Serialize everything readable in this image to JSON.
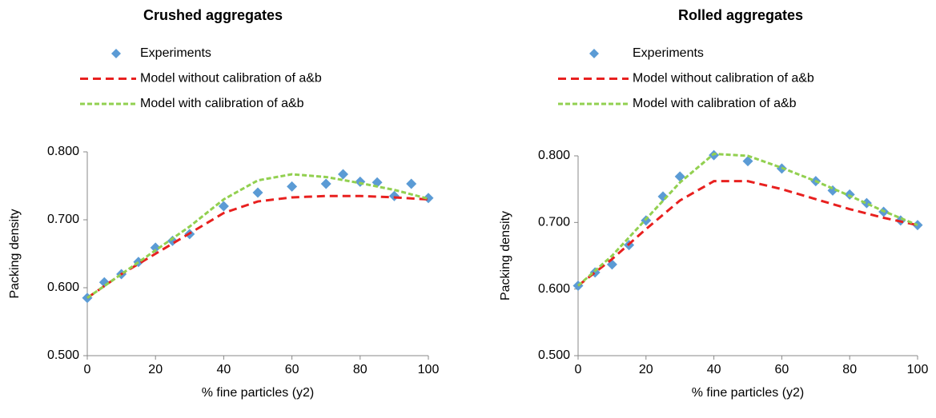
{
  "chart_data": [
    {
      "type": "line",
      "title": "Crushed aggregates",
      "xlabel": "% fine particles (y2)",
      "ylabel": "Packing density",
      "xlim": [
        0,
        100
      ],
      "xticks": [
        0,
        20,
        40,
        60,
        80,
        100
      ],
      "ylim": [
        0.5,
        0.8
      ],
      "yticks": [
        {
          "value": 0.5,
          "label": "0.500"
        },
        {
          "value": 0.6,
          "label": "0.600"
        },
        {
          "value": 0.7,
          "label": "0.700"
        },
        {
          "value": 0.8,
          "label": "0.800"
        }
      ],
      "series": [
        {
          "name": "Experiments",
          "color": "#5b9bd5",
          "style": "markers",
          "x": [
            0,
            5,
            10,
            15,
            20,
            25,
            30,
            40,
            50,
            60,
            70,
            75,
            80,
            85,
            90,
            95,
            100
          ],
          "values": [
            0.585,
            0.608,
            0.62,
            0.638,
            0.659,
            0.669,
            0.679,
            0.72,
            0.74,
            0.749,
            0.753,
            0.767,
            0.756,
            0.755,
            0.735,
            0.753,
            0.732
          ]
        },
        {
          "name": "Model without calibration of a&b",
          "color": "#e8201f",
          "style": "dashed",
          "x": [
            0,
            10,
            20,
            30,
            40,
            50,
            60,
            70,
            80,
            90,
            100
          ],
          "values": [
            0.585,
            0.62,
            0.65,
            0.68,
            0.71,
            0.727,
            0.733,
            0.735,
            0.735,
            0.733,
            0.73
          ]
        },
        {
          "name": "Model with calibration of a&b",
          "color": "#92d050",
          "style": "dotted-dash",
          "x": [
            0,
            10,
            20,
            30,
            40,
            50,
            60,
            70,
            80,
            90,
            100
          ],
          "values": [
            0.585,
            0.62,
            0.655,
            0.69,
            0.73,
            0.758,
            0.767,
            0.763,
            0.754,
            0.744,
            0.731
          ]
        }
      ]
    },
    {
      "type": "line",
      "title": "Rolled aggregates",
      "xlabel": "% fine particles (y2)",
      "ylabel": "Packing density",
      "xlim": [
        0,
        100
      ],
      "xticks": [
        0,
        20,
        40,
        60,
        80,
        100
      ],
      "ylim": [
        0.5,
        0.8
      ],
      "yticks": [
        {
          "value": 0.5,
          "label": "0.500"
        },
        {
          "value": 0.6,
          "label": "0.600"
        },
        {
          "value": 0.7,
          "label": "0.700"
        },
        {
          "value": 0.8,
          "label": "0.800"
        }
      ],
      "series": [
        {
          "name": "Experiments",
          "color": "#5b9bd5",
          "style": "markers",
          "x": [
            0,
            5,
            10,
            15,
            20,
            25,
            30,
            40,
            50,
            60,
            70,
            75,
            80,
            85,
            90,
            95,
            100
          ],
          "values": [
            0.605,
            0.625,
            0.637,
            0.666,
            0.703,
            0.739,
            0.769,
            0.801,
            0.792,
            0.781,
            0.762,
            0.748,
            0.742,
            0.729,
            0.716,
            0.703,
            0.696
          ]
        },
        {
          "name": "Model without calibration of a&b",
          "color": "#e8201f",
          "style": "dashed",
          "x": [
            0,
            10,
            20,
            30,
            40,
            50,
            60,
            70,
            80,
            90,
            100
          ],
          "values": [
            0.605,
            0.645,
            0.69,
            0.733,
            0.762,
            0.762,
            0.75,
            0.735,
            0.72,
            0.707,
            0.696
          ]
        },
        {
          "name": "Model with calibration of a&b",
          "color": "#92d050",
          "style": "dotted-dash",
          "x": [
            0,
            10,
            20,
            30,
            40,
            50,
            60,
            70,
            80,
            90,
            100
          ],
          "values": [
            0.605,
            0.65,
            0.705,
            0.76,
            0.803,
            0.8,
            0.782,
            0.762,
            0.74,
            0.717,
            0.696
          ]
        }
      ]
    }
  ]
}
